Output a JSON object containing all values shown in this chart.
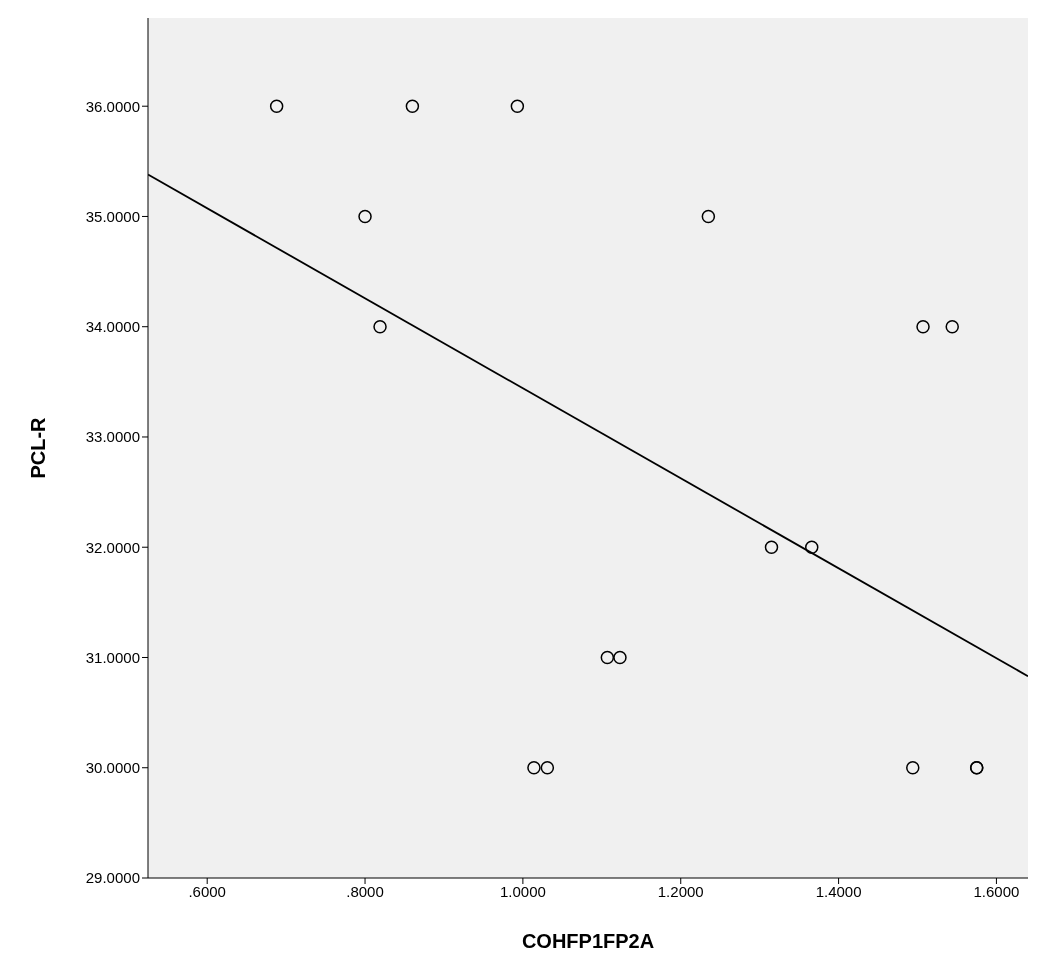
{
  "chart_data": {
    "type": "scatter",
    "xlabel": "COHFP1FP2A",
    "ylabel": "PCL-R",
    "xlim": [
      0.525,
      1.64
    ],
    "ylim": [
      29,
      36.8
    ],
    "xticks": [
      {
        "value": 0.6,
        "label": ".6000"
      },
      {
        "value": 0.8,
        "label": ".8000"
      },
      {
        "value": 1.0,
        "label": "1.0000"
      },
      {
        "value": 1.2,
        "label": "1.2000"
      },
      {
        "value": 1.4,
        "label": "1.4000"
      },
      {
        "value": 1.6,
        "label": "1.6000"
      }
    ],
    "yticks": [
      {
        "value": 29,
        "label": "29.0000"
      },
      {
        "value": 30,
        "label": "30.0000"
      },
      {
        "value": 31,
        "label": "31.0000"
      },
      {
        "value": 32,
        "label": "32.0000"
      },
      {
        "value": 33,
        "label": "33.0000"
      },
      {
        "value": 34,
        "label": "34.0000"
      },
      {
        "value": 35,
        "label": "35.0000"
      },
      {
        "value": 36,
        "label": "36.0000"
      }
    ],
    "grid": false,
    "legend": false,
    "series": [
      {
        "marker": "circle",
        "color": "#000000",
        "x": [
          0.688,
          0.86,
          0.993,
          0.8,
          1.235,
          0.819,
          1.507,
          1.544,
          1.315,
          1.366,
          1.107,
          1.123,
          1.014,
          1.031,
          1.494,
          1.575,
          1.575
        ],
        "values": [
          36,
          36,
          36,
          35,
          35,
          34,
          34,
          34,
          32,
          32,
          31,
          31,
          30,
          30,
          30,
          30,
          30
        ]
      },
      {
        "type": "line",
        "marker": "none",
        "color": "#000000",
        "line_style": "solid",
        "x": [
          0.525,
          1.64
        ],
        "values": [
          35.38,
          30.83
        ]
      }
    ]
  }
}
